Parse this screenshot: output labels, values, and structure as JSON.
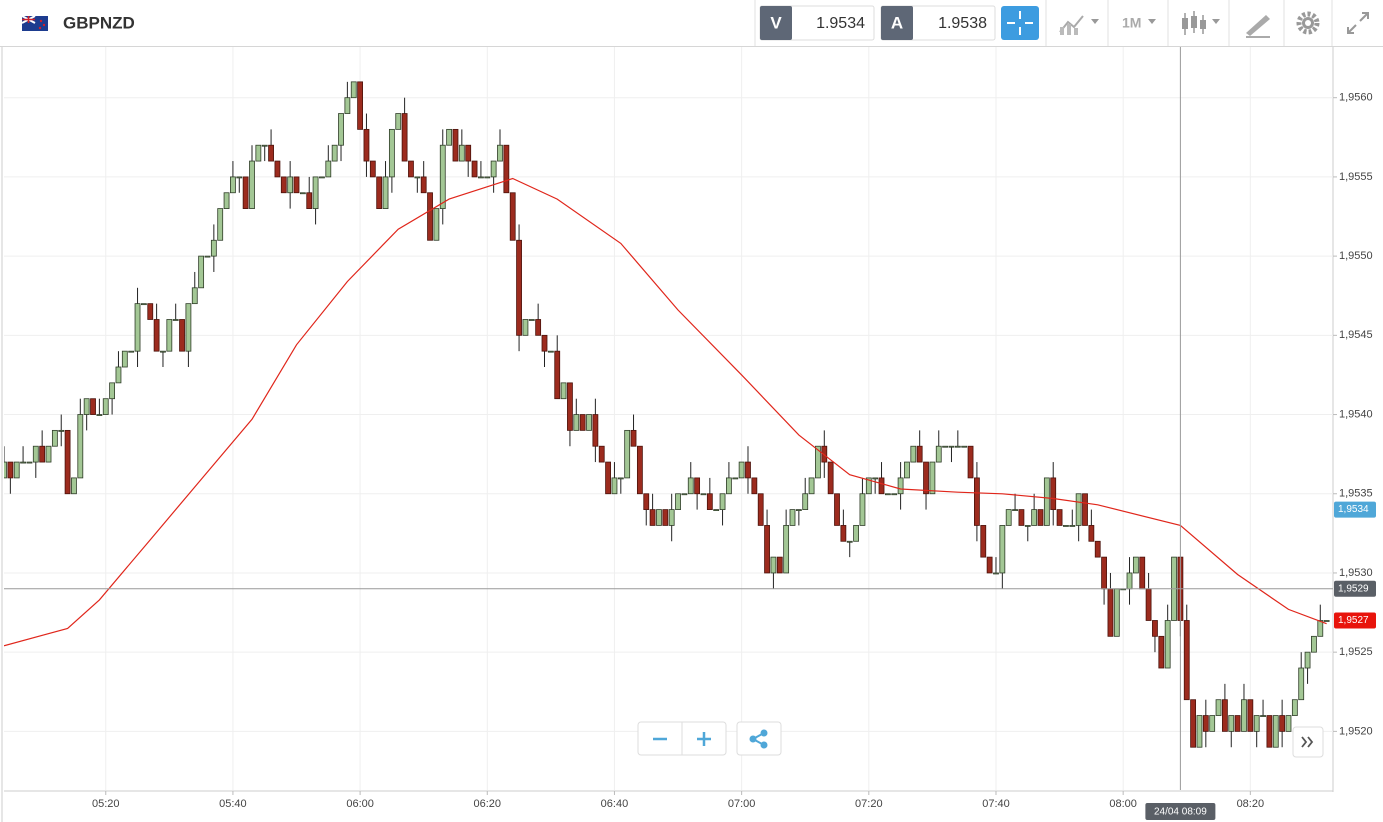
{
  "toolbar": {
    "bid_label": "V",
    "bid": 1.9534,
    "ask_label": "A",
    "ask": 1.9538,
    "timeframe": "1M"
  },
  "chart_data": {
    "type": "candlestick",
    "title": "GBPNZD",
    "x": [
      "05:04",
      "05:05",
      "05:06",
      "05:07",
      "05:08",
      "05:09",
      "05:10",
      "05:11",
      "05:12",
      "05:13",
      "05:14",
      "05:15",
      "05:16",
      "05:17",
      "05:18",
      "05:19",
      "05:20",
      "05:21",
      "05:22",
      "05:23",
      "05:24",
      "05:25",
      "05:26",
      "05:27",
      "05:28",
      "05:29",
      "05:30",
      "05:31",
      "05:32",
      "05:33",
      "05:34",
      "05:35",
      "05:36",
      "05:37",
      "05:38",
      "05:39",
      "05:40",
      "05:41",
      "05:42",
      "05:43",
      "05:44",
      "05:45",
      "05:46",
      "05:47",
      "05:48",
      "05:49",
      "05:50",
      "05:51",
      "05:52",
      "05:53",
      "05:54",
      "05:55",
      "05:56",
      "05:57",
      "05:58",
      "05:59",
      "06:00",
      "06:01",
      "06:02",
      "06:03",
      "06:04",
      "06:05",
      "06:06",
      "06:07",
      "06:08",
      "06:09",
      "06:10",
      "06:11",
      "06:12",
      "06:13",
      "06:14",
      "06:15",
      "06:16",
      "06:17",
      "06:18",
      "06:19",
      "06:20",
      "06:21",
      "06:22",
      "06:23",
      "06:24",
      "06:25",
      "06:26",
      "06:27",
      "06:28",
      "06:29",
      "06:30",
      "06:31",
      "06:32",
      "06:33",
      "06:34",
      "06:35",
      "06:36",
      "06:37",
      "06:38",
      "06:39",
      "06:40",
      "06:41",
      "06:42",
      "06:43",
      "06:44",
      "06:45",
      "06:46",
      "06:47",
      "06:48",
      "06:49",
      "06:50",
      "06:51",
      "06:52",
      "06:53",
      "06:54",
      "06:55",
      "06:56",
      "06:57",
      "06:58",
      "06:59",
      "07:00",
      "07:01",
      "07:02",
      "07:03",
      "07:04",
      "07:05",
      "07:06",
      "07:07",
      "07:08",
      "07:09",
      "07:10",
      "07:11",
      "07:12",
      "07:13",
      "07:14",
      "07:15",
      "07:16",
      "07:17",
      "07:18",
      "07:19",
      "07:20",
      "07:21",
      "07:22",
      "07:23",
      "07:24",
      "07:25",
      "07:26",
      "07:27",
      "07:28",
      "07:29",
      "07:30",
      "07:31",
      "07:32",
      "07:33",
      "07:34",
      "07:35",
      "07:36",
      "07:37",
      "07:38",
      "07:39",
      "07:40",
      "07:41",
      "07:42",
      "07:43",
      "07:44",
      "07:45",
      "07:46",
      "07:47",
      "07:48",
      "07:49",
      "07:50",
      "07:51",
      "07:52",
      "07:53",
      "07:54",
      "07:55",
      "07:56",
      "07:57",
      "07:58",
      "07:59",
      "08:00",
      "08:01",
      "08:02",
      "08:03",
      "08:04",
      "08:05",
      "08:06",
      "08:07",
      "08:08",
      "08:09",
      "08:10",
      "08:11",
      "08:12",
      "08:13",
      "08:14",
      "08:15",
      "08:16",
      "08:17",
      "08:18",
      "08:19",
      "08:20",
      "08:21",
      "08:22",
      "08:23",
      "08:24",
      "08:25",
      "08:26",
      "08:27",
      "08:28",
      "08:29",
      "08:30",
      "08:31",
      "08:32"
    ],
    "open": [
      1.9536,
      1.9537,
      1.9536,
      1.9537,
      1.9537,
      1.9537,
      1.9538,
      1.9537,
      1.9538,
      1.9539,
      1.9539,
      1.9535,
      1.9536,
      1.954,
      1.9541,
      1.954,
      1.954,
      1.9541,
      1.9542,
      1.9543,
      1.9544,
      1.9544,
      1.9547,
      1.9547,
      1.9546,
      1.9544,
      1.9544,
      1.9546,
      1.9546,
      1.9544,
      1.9547,
      1.9548,
      1.955,
      1.955,
      1.9551,
      1.9553,
      1.9554,
      1.9555,
      1.9555,
      1.9553,
      1.9556,
      1.9557,
      1.9557,
      1.9556,
      1.9555,
      1.9554,
      1.9555,
      1.9554,
      1.9554,
      1.9553,
      1.9555,
      1.9555,
      1.9556,
      1.9557,
      1.9559,
      1.956,
      1.9561,
      1.9558,
      1.9556,
      1.9555,
      1.9553,
      1.9555,
      1.9558,
      1.9559,
      1.9556,
      1.9555,
      1.9555,
      1.9554,
      1.9551,
      1.9553,
      1.9557,
      1.9558,
      1.9556,
      1.9557,
      1.9556,
      1.9555,
      1.9555,
      1.9555,
      1.9556,
      1.9557,
      1.9554,
      1.9551,
      1.9545,
      1.9546,
      1.9546,
      1.9545,
      1.9544,
      1.9544,
      1.9541,
      1.9542,
      1.9539,
      1.954,
      1.9539,
      1.954,
      1.9538,
      1.9537,
      1.9535,
      1.9536,
      1.9536,
      1.9539,
      1.9538,
      1.9535,
      1.9534,
      1.9533,
      1.9534,
      1.9533,
      1.9534,
      1.9535,
      1.9535,
      1.9536,
      1.9535,
      1.9535,
      1.9534,
      1.9534,
      1.9535,
      1.9536,
      1.9536,
      1.9537,
      1.9536,
      1.9535,
      1.9533,
      1.953,
      1.9531,
      1.953,
      1.9533,
      1.9534,
      1.9534,
      1.9535,
      1.9536,
      1.9538,
      1.9537,
      1.9535,
      1.9533,
      1.9532,
      1.9532,
      1.9533,
      1.9535,
      1.9536,
      1.9536,
      1.9535,
      1.9535,
      1.9535,
      1.9536,
      1.9537,
      1.9538,
      1.9537,
      1.9535,
      1.9537,
      1.9538,
      1.9538,
      1.9538,
      1.9538,
      1.9538,
      1.9536,
      1.9533,
      1.9531,
      1.953,
      1.953,
      1.9533,
      1.9534,
      1.9534,
      1.9533,
      1.9533,
      1.9534,
      1.9533,
      1.9536,
      1.9534,
      1.9533,
      1.9533,
      1.9533,
      1.9535,
      1.9533,
      1.9532,
      1.9531,
      1.9529,
      1.9526,
      1.9529,
      1.9529,
      1.953,
      1.9531,
      1.9529,
      1.9527,
      1.9526,
      1.9524,
      1.9527,
      1.9531,
      1.9527,
      1.9522,
      1.9519,
      1.9521,
      1.952,
      1.9521,
      1.9522,
      1.952,
      1.9521,
      1.952,
      1.9522,
      1.952,
      1.9521,
      1.9521,
      1.9519,
      1.9521,
      1.952,
      1.9521,
      1.9522,
      1.9524,
      1.9525,
      1.9526,
      1.9527
    ],
    "high": [
      1.9538,
      1.9537,
      1.9537,
      1.9538,
      1.9537,
      1.9538,
      1.9539,
      1.9538,
      1.9539,
      1.954,
      1.9539,
      1.9536,
      1.9541,
      1.9541,
      1.9541,
      1.9541,
      1.9541,
      1.9542,
      1.9544,
      1.9544,
      1.9544,
      1.9548,
      1.9547,
      1.9547,
      1.9547,
      1.9544,
      1.9546,
      1.9547,
      1.9546,
      1.9547,
      1.9549,
      1.955,
      1.955,
      1.9552,
      1.9553,
      1.9554,
      1.9556,
      1.9555,
      1.9555,
      1.9557,
      1.9557,
      1.9557,
      1.9558,
      1.9556,
      1.9555,
      1.9556,
      1.9555,
      1.9554,
      1.9555,
      1.9555,
      1.9555,
      1.9557,
      1.9557,
      1.9559,
      1.9561,
      1.9561,
      1.9561,
      1.9559,
      1.9556,
      1.9555,
      1.9556,
      1.9558,
      1.9559,
      1.956,
      1.9556,
      1.9555,
      1.9556,
      1.9554,
      1.9553,
      1.9558,
      1.9558,
      1.9558,
      1.9558,
      1.9557,
      1.9556,
      1.9556,
      1.9555,
      1.9556,
      1.9558,
      1.9557,
      1.9554,
      1.9552,
      1.9546,
      1.9546,
      1.9547,
      1.9545,
      1.9544,
      1.9545,
      1.9542,
      1.9542,
      1.9541,
      1.954,
      1.954,
      1.9541,
      1.9538,
      1.9537,
      1.9537,
      1.9536,
      1.9539,
      1.954,
      1.9538,
      1.9535,
      1.9535,
      1.9534,
      1.9534,
      1.9535,
      1.9535,
      1.9535,
      1.9537,
      1.9536,
      1.9535,
      1.9536,
      1.9534,
      1.9535,
      1.9537,
      1.9536,
      1.9537,
      1.9538,
      1.9536,
      1.9535,
      1.9534,
      1.9531,
      1.9531,
      1.9534,
      1.9534,
      1.9534,
      1.9536,
      1.9536,
      1.9538,
      1.9539,
      1.9537,
      1.9535,
      1.9534,
      1.9532,
      1.9533,
      1.9536,
      1.9536,
      1.9536,
      1.9537,
      1.9535,
      1.9535,
      1.9537,
      1.9537,
      1.9538,
      1.9539,
      1.9537,
      1.9537,
      1.9539,
      1.9538,
      1.9538,
      1.9539,
      1.9538,
      1.9538,
      1.9537,
      1.9533,
      1.9531,
      1.9531,
      1.9533,
      1.9534,
      1.9535,
      1.9534,
      1.9533,
      1.9535,
      1.9534,
      1.9536,
      1.9537,
      1.9534,
      1.9533,
      1.9534,
      1.9535,
      1.9535,
      1.9534,
      1.9532,
      1.9531,
      1.953,
      1.9529,
      1.9529,
      1.9531,
      1.9531,
      1.9531,
      1.953,
      1.9527,
      1.9526,
      1.9528,
      1.9531,
      1.9531,
      1.9528,
      1.9522,
      1.9521,
      1.9522,
      1.9521,
      1.9522,
      1.9523,
      1.9521,
      1.9521,
      1.9523,
      1.9522,
      1.9521,
      1.9522,
      1.9521,
      1.9521,
      1.9522,
      1.9521,
      1.9522,
      1.9525,
      1.9525,
      1.9526,
      1.9528,
      1.9527
    ],
    "low": [
      1.9536,
      1.9535,
      1.9536,
      1.9537,
      1.9537,
      1.9536,
      1.9537,
      1.9537,
      1.9538,
      1.9538,
      1.9535,
      1.9535,
      1.9536,
      1.9539,
      1.954,
      1.954,
      1.954,
      1.954,
      1.9542,
      1.9543,
      1.9544,
      1.9543,
      1.9547,
      1.9546,
      1.9544,
      1.9543,
      1.9544,
      1.9546,
      1.9544,
      1.9543,
      1.9547,
      1.9548,
      1.955,
      1.9549,
      1.9551,
      1.9553,
      1.9554,
      1.9554,
      1.9553,
      1.9553,
      1.9556,
      1.9556,
      1.9556,
      1.9555,
      1.9554,
      1.9553,
      1.9554,
      1.9554,
      1.9553,
      1.9552,
      1.9555,
      1.9555,
      1.9556,
      1.9556,
      1.9559,
      1.956,
      1.9558,
      1.9555,
      1.9555,
      1.9553,
      1.9553,
      1.9554,
      1.9558,
      1.9556,
      1.9555,
      1.9554,
      1.9554,
      1.9551,
      1.9551,
      1.9552,
      1.9557,
      1.9556,
      1.9556,
      1.9555,
      1.9555,
      1.9555,
      1.9555,
      1.9554,
      1.9556,
      1.9554,
      1.9551,
      1.9544,
      1.9545,
      1.9546,
      1.9545,
      1.9543,
      1.9544,
      1.9541,
      1.9541,
      1.9538,
      1.9539,
      1.9539,
      1.9539,
      1.9537,
      1.9537,
      1.9535,
      1.9535,
      1.9535,
      1.9536,
      1.9538,
      1.9535,
      1.9533,
      1.9533,
      1.9533,
      1.9533,
      1.9532,
      1.9534,
      1.9535,
      1.9535,
      1.9534,
      1.9535,
      1.9534,
      1.9534,
      1.9533,
      1.9535,
      1.9536,
      1.9536,
      1.9535,
      1.9535,
      1.9533,
      1.953,
      1.9529,
      1.953,
      1.953,
      1.9533,
      1.9533,
      1.9534,
      1.9535,
      1.9536,
      1.9536,
      1.9535,
      1.9533,
      1.9532,
      1.9531,
      1.9532,
      1.9533,
      1.9535,
      1.9535,
      1.9535,
      1.9535,
      1.9535,
      1.9534,
      1.9536,
      1.9537,
      1.9537,
      1.9534,
      1.9535,
      1.9537,
      1.9538,
      1.9537,
      1.9538,
      1.9538,
      1.9536,
      1.9532,
      1.9531,
      1.953,
      1.953,
      1.9529,
      1.9533,
      1.9534,
      1.9533,
      1.9532,
      1.9533,
      1.9533,
      1.9533,
      1.9533,
      1.9533,
      1.9533,
      1.9533,
      1.9532,
      1.9533,
      1.9532,
      1.9531,
      1.9528,
      1.9526,
      1.9526,
      1.9529,
      1.9528,
      1.953,
      1.9529,
      1.9527,
      1.9525,
      1.9524,
      1.9524,
      1.9527,
      1.9526,
      1.9522,
      1.9519,
      1.9519,
      1.9519,
      1.952,
      1.9521,
      1.952,
      1.9519,
      1.952,
      1.952,
      1.952,
      1.9519,
      1.9521,
      1.9519,
      1.9519,
      1.9519,
      1.952,
      1.9521,
      1.9522,
      1.9523,
      1.9525,
      1.9526,
      1.9527
    ],
    "close": [
      1.9537,
      1.9536,
      1.9537,
      1.9537,
      1.9537,
      1.9538,
      1.9537,
      1.9538,
      1.9539,
      1.9539,
      1.9535,
      1.9536,
      1.954,
      1.9541,
      1.954,
      1.954,
      1.9541,
      1.9542,
      1.9543,
      1.9544,
      1.9544,
      1.9547,
      1.9547,
      1.9546,
      1.9544,
      1.9544,
      1.9546,
      1.9546,
      1.9544,
      1.9547,
      1.9548,
      1.955,
      1.955,
      1.9551,
      1.9553,
      1.9554,
      1.9555,
      1.9555,
      1.9553,
      1.9556,
      1.9557,
      1.9557,
      1.9556,
      1.9555,
      1.9554,
      1.9555,
      1.9554,
      1.9554,
      1.9553,
      1.9555,
      1.9555,
      1.9556,
      1.9557,
      1.9559,
      1.956,
      1.9561,
      1.9558,
      1.9556,
      1.9555,
      1.9553,
      1.9555,
      1.9558,
      1.9559,
      1.9556,
      1.9555,
      1.9555,
      1.9554,
      1.9551,
      1.9553,
      1.9557,
      1.9558,
      1.9556,
      1.9557,
      1.9556,
      1.9555,
      1.9555,
      1.9555,
      1.9556,
      1.9557,
      1.9554,
      1.9551,
      1.9545,
      1.9546,
      1.9546,
      1.9545,
      1.9544,
      1.9544,
      1.9541,
      1.9542,
      1.9539,
      1.954,
      1.9539,
      1.954,
      1.9538,
      1.9537,
      1.9535,
      1.9536,
      1.9536,
      1.9539,
      1.9538,
      1.9535,
      1.9534,
      1.9533,
      1.9534,
      1.9533,
      1.9534,
      1.9535,
      1.9535,
      1.9536,
      1.9535,
      1.9535,
      1.9534,
      1.9534,
      1.9535,
      1.9536,
      1.9536,
      1.9537,
      1.9536,
      1.9535,
      1.9533,
      1.953,
      1.9531,
      1.953,
      1.9533,
      1.9534,
      1.9534,
      1.9535,
      1.9536,
      1.9538,
      1.9537,
      1.9535,
      1.9533,
      1.9532,
      1.9532,
      1.9533,
      1.9535,
      1.9536,
      1.9536,
      1.9535,
      1.9535,
      1.9535,
      1.9536,
      1.9537,
      1.9538,
      1.9537,
      1.9535,
      1.9537,
      1.9538,
      1.9538,
      1.9538,
      1.9538,
      1.9538,
      1.9536,
      1.9533,
      1.9531,
      1.953,
      1.953,
      1.9533,
      1.9534,
      1.9534,
      1.9533,
      1.9533,
      1.9534,
      1.9533,
      1.9536,
      1.9534,
      1.9533,
      1.9533,
      1.9533,
      1.9535,
      1.9533,
      1.9532,
      1.9531,
      1.9529,
      1.9526,
      1.9529,
      1.9529,
      1.953,
      1.9531,
      1.9529,
      1.9527,
      1.9526,
      1.9524,
      1.9527,
      1.9531,
      1.9527,
      1.9522,
      1.9519,
      1.9521,
      1.952,
      1.9521,
      1.9522,
      1.952,
      1.9521,
      1.952,
      1.9522,
      1.952,
      1.9521,
      1.9521,
      1.9519,
      1.9521,
      1.952,
      1.9521,
      1.9522,
      1.9524,
      1.9525,
      1.9526,
      1.9527,
      1.9527
    ],
    "up_color": "#a3c795",
    "down_color": "#9c2b1e",
    "ma": {
      "color": "#e0261b",
      "x": [
        "05:04",
        "05:14",
        "05:19",
        "05:27",
        "05:35",
        "05:43",
        "05:50",
        "05:58",
        "06:06",
        "06:14",
        "06:24",
        "06:31",
        "06:41",
        "06:50",
        "07:00",
        "07:09",
        "07:17",
        "07:25",
        "07:34",
        "07:41",
        "07:49",
        "07:56",
        "08:09",
        "08:18",
        "08:26",
        "08:32"
      ],
      "values": [
        1.95254,
        1.95265,
        1.95283,
        1.95321,
        1.95359,
        1.95397,
        1.95444,
        1.95484,
        1.95517,
        1.95536,
        1.95549,
        1.95536,
        1.95508,
        1.95466,
        1.95425,
        1.95387,
        1.95362,
        1.95353,
        1.95351,
        1.9535,
        1.95347,
        1.95343,
        1.9533,
        1.95299,
        1.95277,
        1.95268
      ]
    },
    "xlim": [
      "05:04",
      "08:33"
    ],
    "xticks": [
      "05:20",
      "05:40",
      "06:00",
      "06:20",
      "06:40",
      "07:00",
      "07:20",
      "07:40",
      "08:00",
      "08:20"
    ],
    "ylim": [
      1.95163,
      1.95632
    ],
    "yticks": [
      {
        "value": 1.952,
        "label": "1,9520"
      },
      {
        "value": 1.9525,
        "label": "1,9525"
      },
      {
        "value": 1.953,
        "label": "1,9530"
      },
      {
        "value": 1.9535,
        "label": "1,9535"
      },
      {
        "value": 1.954,
        "label": "1,9540"
      },
      {
        "value": 1.9545,
        "label": "1,9545"
      },
      {
        "value": 1.955,
        "label": "1,9550"
      },
      {
        "value": 1.9555,
        "label": "1,9555"
      },
      {
        "value": 1.956,
        "label": "1,9560"
      }
    ],
    "grid": true,
    "price_labels": [
      {
        "value": 1.9534,
        "label": "1,9534",
        "color": "#4fa7d8"
      },
      {
        "value": 1.9527,
        "label": "1,9527",
        "color": "#e8140c"
      }
    ],
    "crosshair": {
      "x": "08:09",
      "y": 1.9529,
      "x_label": "24/04 08:09",
      "y_label": "1,9529",
      "color": "#5a5f66"
    }
  }
}
